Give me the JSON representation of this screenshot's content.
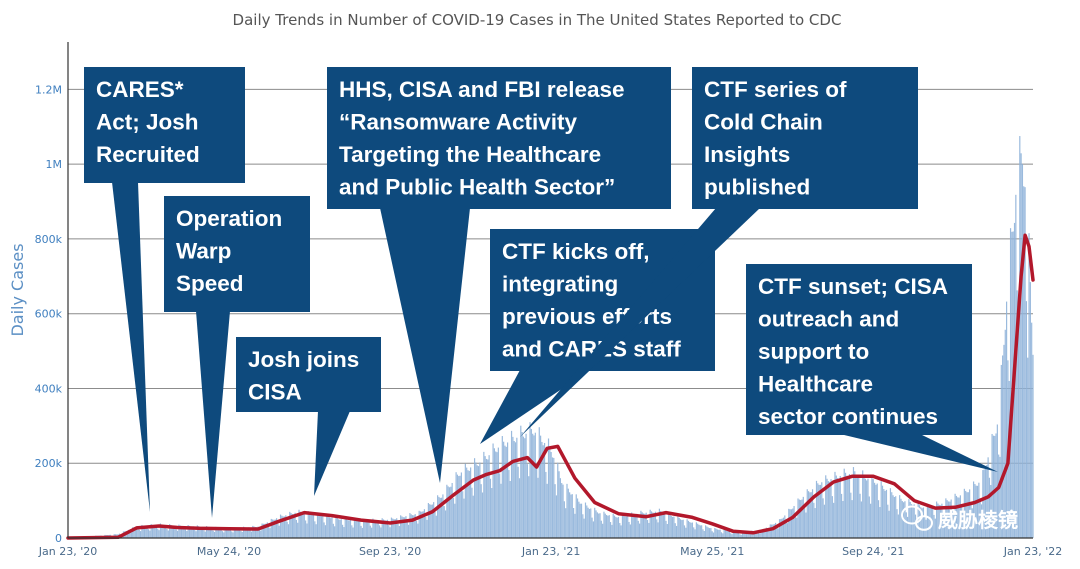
{
  "chart_data": {
    "type": "bar",
    "title": "Daily Trends in Number of COVID-19 Cases in The United States Reported to CDC",
    "xlabel": "",
    "ylabel": "Daily Cases",
    "ylim": [
      0,
      1300000
    ],
    "yticks": [
      0,
      200000,
      400000,
      600000,
      800000,
      1000000,
      1200000
    ],
    "ytick_labels": [
      "0",
      "200k",
      "400k",
      "600k",
      "800k",
      "1M",
      "1.2M"
    ],
    "x_range": [
      "2020-01-23",
      "2022-01-23"
    ],
    "xticks": [
      "2020-01-23",
      "2020-05-24",
      "2020-09-23",
      "2021-01-23",
      "2021-05-25",
      "2021-09-24",
      "2022-01-23"
    ],
    "xtick_labels": [
      "Jan 23, '20",
      "May 24, '20",
      "Sep 23, '20",
      "Jan 23, '21",
      "May 25, '21",
      "Sep 24, '21",
      "Jan 23, '22"
    ],
    "grid": true,
    "series": [
      {
        "kind": "bar",
        "color": "#8fb3d9",
        "x": [
          "2020-01-23",
          "2020-03-01",
          "2020-03-15",
          "2020-04-01",
          "2020-04-15",
          "2020-05-01",
          "2020-05-24",
          "2020-06-15",
          "2020-07-01",
          "2020-07-15",
          "2020-08-01",
          "2020-08-15",
          "2020-09-01",
          "2020-09-23",
          "2020-10-15",
          "2020-11-01",
          "2020-11-15",
          "2020-12-01",
          "2020-12-15",
          "2021-01-01",
          "2021-01-10",
          "2021-01-23",
          "2021-02-01",
          "2021-02-15",
          "2021-03-01",
          "2021-03-15",
          "2021-04-01",
          "2021-04-15",
          "2021-05-01",
          "2021-05-25",
          "2021-06-15",
          "2021-07-01",
          "2021-07-15",
          "2021-08-01",
          "2021-08-15",
          "2021-09-01",
          "2021-09-10",
          "2021-09-24",
          "2021-10-15",
          "2021-11-01",
          "2021-11-15",
          "2021-12-01",
          "2021-12-15",
          "2021-12-28",
          "2022-01-03",
          "2022-01-10",
          "2022-01-15",
          "2022-01-18",
          "2022-01-23"
        ],
        "values": [
          0,
          10000,
          30000,
          35000,
          32000,
          30000,
          24000,
          30000,
          55000,
          68000,
          60000,
          50000,
          45000,
          48000,
          65000,
          110000,
          170000,
          200000,
          240000,
          270000,
          280000,
          230000,
          140000,
          90000,
          65000,
          55000,
          65000,
          70000,
          50000,
          25000,
          14000,
          20000,
          45000,
          105000,
          145000,
          165000,
          170000,
          150000,
          100000,
          80000,
          90000,
          115000,
          150000,
          310000,
          620000,
          900000,
          1000000,
          880000,
          500000
        ]
      },
      {
        "kind": "line",
        "color": "#b2182b",
        "x": [
          "2020-01-23",
          "2020-03-01",
          "2020-03-15",
          "2020-04-01",
          "2020-04-15",
          "2020-05-01",
          "2020-05-24",
          "2020-06-15",
          "2020-07-01",
          "2020-07-20",
          "2020-08-10",
          "2020-09-01",
          "2020-09-23",
          "2020-10-10",
          "2020-10-25",
          "2020-11-10",
          "2020-11-25",
          "2020-12-05",
          "2020-12-15",
          "2020-12-25",
          "2021-01-05",
          "2021-01-12",
          "2021-01-20",
          "2021-01-28",
          "2021-02-10",
          "2021-02-25",
          "2021-03-15",
          "2021-04-05",
          "2021-04-20",
          "2021-05-10",
          "2021-05-25",
          "2021-06-10",
          "2021-06-25",
          "2021-07-10",
          "2021-07-25",
          "2021-08-10",
          "2021-08-25",
          "2021-09-08",
          "2021-09-24",
          "2021-10-10",
          "2021-10-25",
          "2021-11-10",
          "2021-11-25",
          "2021-12-10",
          "2021-12-20",
          "2021-12-28",
          "2022-01-04",
          "2022-01-10",
          "2022-01-14",
          "2022-01-17",
          "2022-01-20",
          "2022-01-23"
        ],
        "values": [
          0,
          2000,
          27000,
          32000,
          28000,
          26000,
          25000,
          24000,
          45000,
          68000,
          60000,
          48000,
          40000,
          48000,
          70000,
          115000,
          155000,
          170000,
          180000,
          205000,
          215000,
          190000,
          240000,
          245000,
          160000,
          95000,
          65000,
          57000,
          68000,
          55000,
          38000,
          18000,
          14000,
          25000,
          55000,
          110000,
          150000,
          165000,
          165000,
          145000,
          100000,
          80000,
          82000,
          95000,
          110000,
          135000,
          200000,
          500000,
          700000,
          810000,
          780000,
          690000
        ]
      }
    ],
    "annotations": [
      {
        "name": "cares-act",
        "lines": [
          "CARES*",
          "Act; Josh",
          "Recruited"
        ],
        "target_date": "2020-03-25"
      },
      {
        "name": "operation-warp-speed",
        "lines": [
          "Operation",
          "Warp",
          "Speed"
        ],
        "target_date": "2020-05-15"
      },
      {
        "name": "josh-joins-cisa",
        "lines": [
          "Josh joins",
          "CISA"
        ],
        "target_date": "2020-07-25"
      },
      {
        "name": "hhs-cisa-fbi-release",
        "lines": [
          "HHS, CISA and FBI release",
          "“Ransomware Activity",
          "Targeting the Healthcare",
          "and Public Health Sector”"
        ],
        "target_date": "2020-10-28"
      },
      {
        "name": "ctf-kicks-off",
        "lines": [
          "CTF kicks off,",
          "integrating",
          "previous efforts",
          "and CARES staff"
        ],
        "target_date": "2020-12-10"
      },
      {
        "name": "ctf-cold-chain",
        "lines": [
          "CTF series of",
          "Cold Chain",
          "Insights",
          "published"
        ],
        "target_date": "2020-12-28"
      },
      {
        "name": "ctf-sunset",
        "lines": [
          "CTF sunset; CISA",
          "outreach and",
          "support to",
          "Healthcare",
          "sector continues"
        ],
        "target_date": "2022-01-08"
      }
    ]
  },
  "watermark": {
    "text": "威胁棱镜",
    "icon": "wechat-icon"
  }
}
